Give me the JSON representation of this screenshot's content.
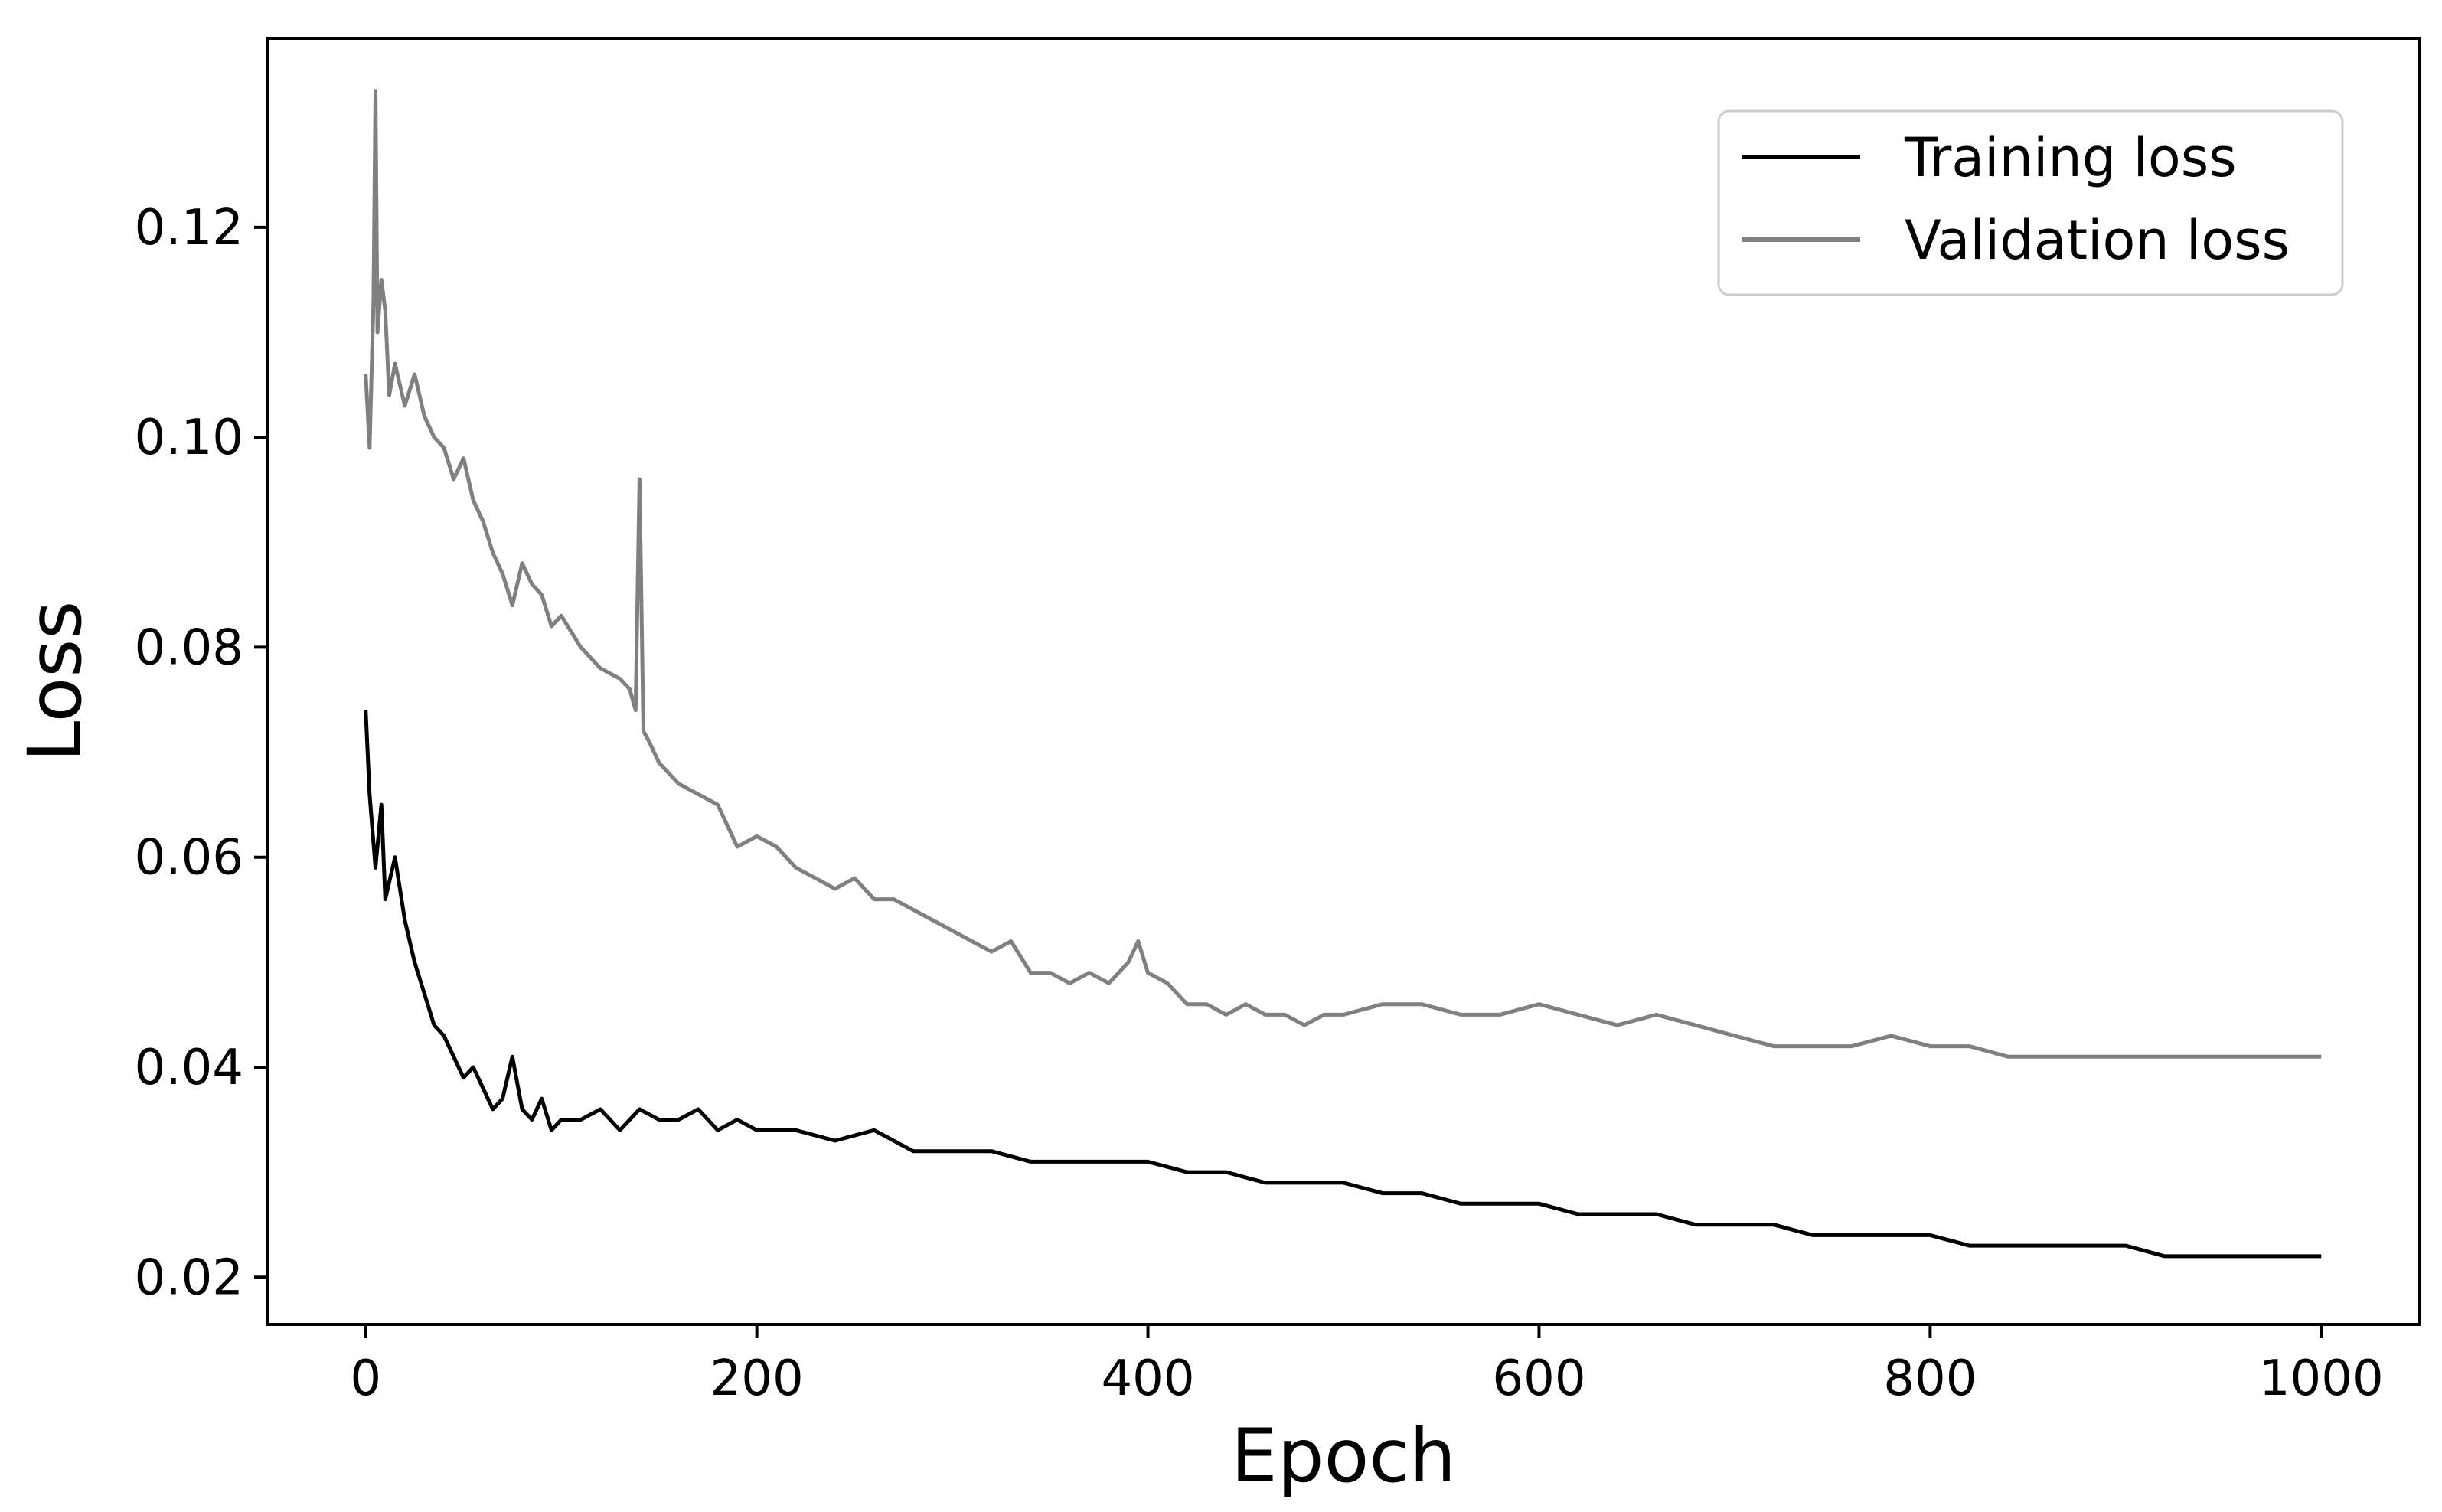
{
  "chart_data": {
    "type": "line",
    "title": "",
    "xlabel": "Epoch",
    "ylabel": "Loss",
    "xlim": [
      -50,
      1050
    ],
    "ylim": [
      0.0155,
      0.138
    ],
    "xticks": [
      0,
      200,
      400,
      600,
      800,
      1000
    ],
    "xtick_labels": [
      "0",
      "200",
      "400",
      "600",
      "800",
      "1000"
    ],
    "yticks": [
      0.02,
      0.04,
      0.06,
      0.08,
      0.1,
      0.12
    ],
    "ytick_labels": [
      "0.02",
      "0.04",
      "0.06",
      "0.08",
      "0.10",
      "0.12"
    ],
    "grid": false,
    "legend_position": "top-right",
    "series": [
      {
        "name": "Training loss",
        "color": "#000000",
        "x": [
          0,
          2,
          5,
          8,
          10,
          15,
          20,
          25,
          30,
          35,
          40,
          45,
          50,
          55,
          60,
          65,
          70,
          75,
          80,
          85,
          90,
          95,
          100,
          110,
          120,
          130,
          140,
          150,
          160,
          170,
          180,
          190,
          200,
          220,
          240,
          260,
          280,
          300,
          320,
          340,
          360,
          380,
          400,
          420,
          440,
          460,
          480,
          500,
          520,
          540,
          560,
          580,
          600,
          620,
          640,
          660,
          680,
          700,
          720,
          740,
          760,
          780,
          800,
          820,
          840,
          860,
          880,
          900,
          920,
          940,
          960,
          980,
          1000
        ],
        "y": [
          0.074,
          0.066,
          0.059,
          0.065,
          0.056,
          0.06,
          0.054,
          0.05,
          0.047,
          0.044,
          0.043,
          0.041,
          0.039,
          0.04,
          0.038,
          0.036,
          0.037,
          0.041,
          0.036,
          0.035,
          0.037,
          0.034,
          0.035,
          0.035,
          0.036,
          0.034,
          0.036,
          0.035,
          0.035,
          0.036,
          0.034,
          0.035,
          0.034,
          0.034,
          0.033,
          0.034,
          0.032,
          0.032,
          0.032,
          0.031,
          0.031,
          0.031,
          0.031,
          0.03,
          0.03,
          0.029,
          0.029,
          0.029,
          0.028,
          0.028,
          0.027,
          0.027,
          0.027,
          0.026,
          0.026,
          0.026,
          0.025,
          0.025,
          0.025,
          0.024,
          0.024,
          0.024,
          0.024,
          0.023,
          0.023,
          0.023,
          0.023,
          0.023,
          0.022,
          0.022,
          0.022,
          0.022,
          0.022
        ]
      },
      {
        "name": "Validation loss",
        "color": "#808080",
        "x": [
          0,
          2,
          4,
          5,
          6,
          8,
          10,
          12,
          15,
          20,
          25,
          30,
          35,
          40,
          45,
          50,
          55,
          60,
          65,
          70,
          75,
          80,
          85,
          90,
          95,
          100,
          110,
          120,
          130,
          135,
          138,
          140,
          142,
          145,
          150,
          160,
          170,
          180,
          190,
          200,
          210,
          220,
          230,
          240,
          250,
          260,
          270,
          280,
          290,
          300,
          310,
          320,
          330,
          340,
          350,
          360,
          370,
          380,
          390,
          395,
          400,
          410,
          420,
          430,
          440,
          450,
          460,
          470,
          480,
          490,
          500,
          520,
          540,
          560,
          580,
          600,
          620,
          640,
          660,
          680,
          700,
          720,
          740,
          760,
          780,
          800,
          820,
          840,
          860,
          880,
          900,
          920,
          940,
          960,
          980,
          1000
        ],
        "y": [
          0.106,
          0.099,
          0.113,
          0.133,
          0.11,
          0.115,
          0.112,
          0.104,
          0.107,
          0.103,
          0.106,
          0.102,
          0.1,
          0.099,
          0.096,
          0.098,
          0.094,
          0.092,
          0.089,
          0.087,
          0.084,
          0.088,
          0.086,
          0.085,
          0.082,
          0.083,
          0.08,
          0.078,
          0.077,
          0.076,
          0.074,
          0.096,
          0.072,
          0.071,
          0.069,
          0.067,
          0.066,
          0.065,
          0.061,
          0.062,
          0.061,
          0.059,
          0.058,
          0.057,
          0.058,
          0.056,
          0.056,
          0.055,
          0.054,
          0.053,
          0.052,
          0.051,
          0.052,
          0.049,
          0.049,
          0.048,
          0.049,
          0.048,
          0.05,
          0.052,
          0.049,
          0.048,
          0.046,
          0.046,
          0.045,
          0.046,
          0.045,
          0.045,
          0.044,
          0.045,
          0.045,
          0.046,
          0.046,
          0.045,
          0.045,
          0.046,
          0.045,
          0.044,
          0.045,
          0.044,
          0.043,
          0.042,
          0.042,
          0.042,
          0.043,
          0.042,
          0.042,
          0.041,
          0.041,
          0.041,
          0.041,
          0.041,
          0.041,
          0.041,
          0.041,
          0.041
        ]
      }
    ]
  }
}
